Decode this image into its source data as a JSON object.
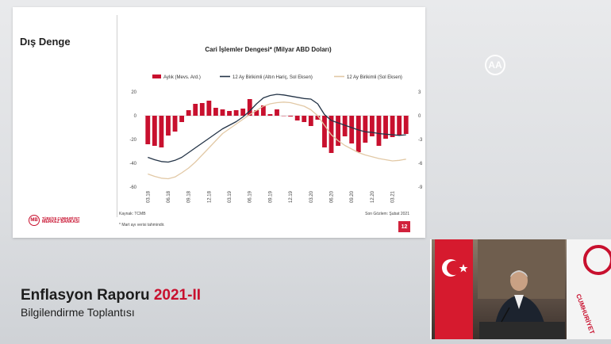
{
  "slide": {
    "title": "Dış Denge",
    "source": "Kaynak: TCMB",
    "note": "* Mart ayı verisi tahmindir.",
    "last_observation": "Son Gözlem: Şubat 2021",
    "page_number": "12",
    "logo": {
      "line1": "TÜRKİYE CUMHURİYET",
      "line2": "MERKEZ BANKASI",
      "icon": "tcmb-logo-icon"
    }
  },
  "overlay": {
    "report_title": "Enflasyon Raporu",
    "report_year": "2021-II",
    "report_subtitle": "Bilgilendirme Toplantısı",
    "watermark_icon": "aa-logo-icon"
  },
  "video": {
    "icon": "presenter-video-feed"
  },
  "chart_data": {
    "type": "bar",
    "title": "Cari İşlemler Dengesi* (Milyar ABD Doları)",
    "x_tick_labels": [
      "03.18",
      "06.18",
      "09.18",
      "12.18",
      "03.19",
      "06.19",
      "09.19",
      "12.19",
      "03.20",
      "06.20",
      "09.20",
      "12.20",
      "03.21"
    ],
    "legend": [
      "Aylık (Mevs. Ard.)",
      "12 Ay Birikimli (Altın Hariç, Sol Eksen)",
      "12 Ay Birikimli (Sol Eksen)"
    ],
    "legend_position": "top",
    "left_axis": {
      "ylim": [
        -60,
        20
      ],
      "ticks": [
        20,
        0,
        -20,
        -40,
        -60
      ]
    },
    "right_axis": {
      "ylim": [
        -9,
        3
      ],
      "ticks": [
        3,
        0,
        -3,
        -6,
        -9
      ]
    },
    "colors": {
      "monthly": "#c8102e",
      "ex_gold": "#243447",
      "total": "#e2c9a6"
    },
    "series": [
      {
        "name": "Aylık (Mevs. Ard.)",
        "axis": "right",
        "kind": "bar",
        "values": [
          -3.6,
          -3.8,
          -4.0,
          -2.5,
          -2.0,
          -0.8,
          0.7,
          1.5,
          1.6,
          1.9,
          1.0,
          0.8,
          0.6,
          0.7,
          0.9,
          2.1,
          0.7,
          1.3,
          0.2,
          0.8,
          0.0,
          -0.1,
          -0.6,
          -0.8,
          -1.3,
          -0.5,
          -4.0,
          -4.7,
          -3.8,
          -2.6,
          -3.5,
          -4.6,
          -3.4,
          -2.6,
          -3.8,
          -2.9,
          -2.7,
          -2.5,
          -2.3
        ]
      },
      {
        "name": "12 Ay Birikimli (Altın Hariç, Sol Eksen)",
        "axis": "left",
        "kind": "line",
        "values": [
          -35,
          -37,
          -38.5,
          -39,
          -37.5,
          -35,
          -31,
          -27,
          -23,
          -19,
          -15,
          -11,
          -8,
          -5,
          -1,
          4,
          10,
          15,
          17,
          18,
          17.5,
          16.5,
          15.5,
          14.5,
          14,
          10,
          1,
          -4,
          -6,
          -8,
          -10,
          -12,
          -13.5,
          -14,
          -15,
          -15.5,
          -16,
          -16.5,
          -16
        ]
      },
      {
        "name": "12 Ay Birikimli (Sol Eksen)",
        "axis": "left",
        "kind": "line",
        "values": [
          -49,
          -51,
          -52.5,
          -53,
          -51.5,
          -48,
          -44,
          -39,
          -33,
          -27,
          -21,
          -15,
          -11,
          -7,
          -3,
          1,
          4.5,
          8,
          10,
          11,
          11.5,
          11,
          9.5,
          8,
          5,
          0,
          -8,
          -16,
          -21,
          -25,
          -28,
          -31,
          -33,
          -34.5,
          -36,
          -37,
          -38,
          -37.5,
          -36.5
        ]
      }
    ]
  }
}
